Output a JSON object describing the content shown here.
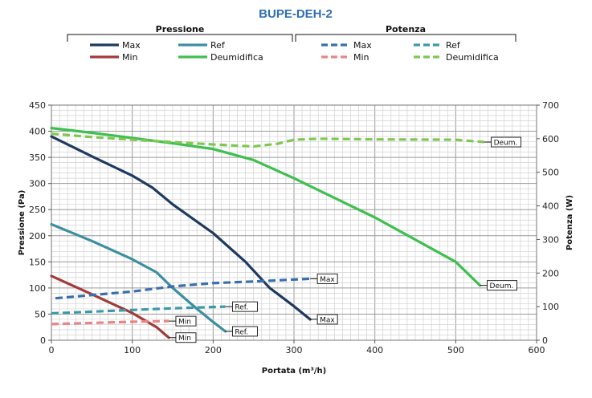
{
  "chart_data": {
    "type": "line",
    "title": "BUPE-DEH-2",
    "xlabel": "Portata (m³/h)",
    "ylabel": "Pressione (Pa)",
    "y2label": "Potenza (W)",
    "xlim": [
      0,
      600
    ],
    "ylim": [
      0,
      450
    ],
    "y2lim": [
      0,
      700
    ],
    "x_ticks": [
      "0",
      "100",
      "200",
      "300",
      "400",
      "500",
      "600"
    ],
    "y_ticks": [
      "0",
      "50",
      "100",
      "150",
      "200",
      "250",
      "300",
      "350",
      "400",
      "450"
    ],
    "y2_ticks": [
      "0",
      "100",
      "200",
      "300",
      "400",
      "500",
      "600",
      "700"
    ],
    "grid": true,
    "legend": {
      "groups": [
        {
          "title": "Pressione",
          "entries": [
            "Max",
            "Ref",
            "Min",
            "Deumidifica"
          ]
        },
        {
          "title": "Potenza",
          "entries": [
            "Max",
            "Ref",
            "Min",
            "Deumidifica"
          ]
        }
      ]
    },
    "series": [
      {
        "name": "Max",
        "group": "Pressione",
        "axis": "left",
        "style": "solid",
        "color": "#1f3a5f",
        "x": [
          0,
          50,
          100,
          125,
          150,
          200,
          240,
          270,
          300,
          320
        ],
        "y": [
          390,
          352,
          315,
          292,
          260,
          205,
          150,
          100,
          65,
          40
        ]
      },
      {
        "name": "Ref",
        "group": "Pressione",
        "axis": "left",
        "style": "solid",
        "color": "#3c8fa0",
        "x": [
          0,
          50,
          100,
          130,
          150,
          180,
          200,
          215
        ],
        "y": [
          222,
          190,
          155,
          130,
          100,
          60,
          35,
          17
        ]
      },
      {
        "name": "Min",
        "group": "Pressione",
        "axis": "left",
        "style": "solid",
        "color": "#a33a3a",
        "x": [
          0,
          50,
          100,
          130,
          145
        ],
        "y": [
          123,
          88,
          52,
          25,
          5
        ]
      },
      {
        "name": "Deumidifica",
        "group": "Pressione",
        "axis": "left",
        "style": "solid",
        "color": "#3fbf4f",
        "x": [
          0,
          50,
          100,
          150,
          200,
          250,
          300,
          400,
          500,
          530
        ],
        "y": [
          406,
          397,
          387,
          377,
          366,
          345,
          310,
          235,
          150,
          105
        ]
      },
      {
        "name": "Max",
        "group": "Potenza",
        "axis": "right",
        "style": "dashed",
        "color": "#3a6fad",
        "x": [
          5,
          100,
          150,
          200,
          250,
          320
        ],
        "y": [
          125,
          145,
          160,
          170,
          175,
          183
        ]
      },
      {
        "name": "Ref",
        "group": "Potenza",
        "axis": "right",
        "style": "dashed",
        "color": "#3c9aa8",
        "x": [
          0,
          100,
          150,
          215
        ],
        "y": [
          80,
          90,
          95,
          100
        ]
      },
      {
        "name": "Min",
        "group": "Potenza",
        "axis": "right",
        "style": "dashed",
        "color": "#e98585",
        "x": [
          0,
          100,
          145
        ],
        "y": [
          48,
          55,
          57
        ]
      },
      {
        "name": "Deumidifica",
        "group": "Potenza",
        "axis": "right",
        "style": "dashed",
        "color": "#7ec850",
        "x": [
          0,
          50,
          100,
          150,
          200,
          250,
          280,
          300,
          330,
          400,
          500,
          535
        ],
        "y": [
          615,
          605,
          597,
          590,
          583,
          577,
          585,
          597,
          600,
          598,
          597,
          590
        ]
      }
    ],
    "curve_labels": [
      {
        "text": "Max",
        "series": 4,
        "at_end": true
      },
      {
        "text": "Max",
        "series": 0,
        "at_end": true
      },
      {
        "text": "Ref.",
        "series": 5,
        "at_end": true
      },
      {
        "text": "Ref.",
        "series": 1,
        "at_end": true
      },
      {
        "text": "Min",
        "series": 6,
        "at_end": true
      },
      {
        "text": "Min",
        "series": 2,
        "at_end": true
      },
      {
        "text": "Deum.",
        "series": 7,
        "at_end": true
      },
      {
        "text": "Deum.",
        "series": 3,
        "at_end": true
      }
    ]
  }
}
